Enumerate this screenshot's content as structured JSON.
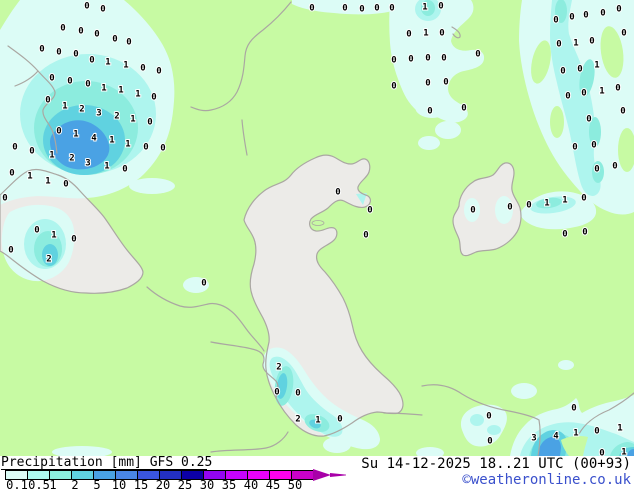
{
  "legend": {
    "title": "Precipitation [mm] GFS 0.25",
    "parameter": "Precipitation",
    "unit": "mm",
    "model": "GFS 0.25",
    "scale": [
      {
        "label": "0.1",
        "color": "#dcfcf6"
      },
      {
        "label": "0.5",
        "color": "#aefaf0"
      },
      {
        "label": "1",
        "color": "#8cf0de"
      },
      {
        "label": "2",
        "color": "#60d2e0"
      },
      {
        "label": "5",
        "color": "#4aa2e4"
      },
      {
        "label": "10",
        "color": "#4a86e6"
      },
      {
        "label": "15",
        "color": "#3a55dd"
      },
      {
        "label": "20",
        "color": "#2330c2"
      },
      {
        "label": "25",
        "color": "#0c00a6"
      },
      {
        "label": "30",
        "color": "#9305f2"
      },
      {
        "label": "35",
        "color": "#c603fc"
      },
      {
        "label": "40",
        "color": "#ea02fa"
      },
      {
        "label": "45",
        "color": "#fe01ee"
      },
      {
        "label": "50",
        "color": "#c801c8"
      }
    ],
    "overflow_arrow_color": "#a800a8"
  },
  "status_bar": {
    "valid_time": "Su 14-12-2025 18..21 UTC (00+93)",
    "copyright": "©weatheronline.co.uk",
    "copyright_color": "#3a50cc"
  },
  "map": {
    "colors": {
      "land": "#c7faa3",
      "sea": "#ecebe8",
      "coast": "#aaa7a2",
      "precip_01": "#dcfcf6",
      "precip_05": "#aef5ee",
      "precip_1": "#8cecde",
      "precip_2": "#60d2e0",
      "precip_5": "#4aa2e4"
    },
    "precip_values": [
      [
        87,
        5,
        "0"
      ],
      [
        103,
        8,
        "0"
      ],
      [
        63,
        27,
        "0"
      ],
      [
        81,
        30,
        "0"
      ],
      [
        97,
        33,
        "0"
      ],
      [
        115,
        38,
        "0"
      ],
      [
        129,
        41,
        "0"
      ],
      [
        42,
        48,
        "0"
      ],
      [
        59,
        51,
        "0"
      ],
      [
        76,
        53,
        "0"
      ],
      [
        92,
        59,
        "0"
      ],
      [
        108,
        61,
        "1"
      ],
      [
        126,
        64,
        "1"
      ],
      [
        143,
        67,
        "0"
      ],
      [
        159,
        70,
        "0"
      ],
      [
        52,
        77,
        "0"
      ],
      [
        70,
        80,
        "0"
      ],
      [
        88,
        83,
        "0"
      ],
      [
        104,
        87,
        "1"
      ],
      [
        121,
        89,
        "1"
      ],
      [
        138,
        93,
        "1"
      ],
      [
        154,
        96,
        "0"
      ],
      [
        48,
        99,
        "0"
      ],
      [
        65,
        105,
        "1"
      ],
      [
        82,
        108,
        "2"
      ],
      [
        99,
        112,
        "3"
      ],
      [
        117,
        115,
        "2"
      ],
      [
        133,
        118,
        "1"
      ],
      [
        150,
        121,
        "0"
      ],
      [
        59,
        130,
        "0"
      ],
      [
        76,
        133,
        "1"
      ],
      [
        94,
        137,
        "4"
      ],
      [
        112,
        139,
        "1"
      ],
      [
        128,
        143,
        "1"
      ],
      [
        146,
        146,
        "0"
      ],
      [
        163,
        147,
        "0"
      ],
      [
        15,
        146,
        "0"
      ],
      [
        32,
        150,
        "0"
      ],
      [
        52,
        154,
        "1"
      ],
      [
        72,
        157,
        "2"
      ],
      [
        88,
        162,
        "3"
      ],
      [
        107,
        165,
        "1"
      ],
      [
        125,
        168,
        "0"
      ],
      [
        12,
        172,
        "0"
      ],
      [
        30,
        175,
        "1"
      ],
      [
        48,
        180,
        "1"
      ],
      [
        66,
        183,
        "0"
      ],
      [
        5,
        197,
        "0"
      ],
      [
        312,
        7,
        "0"
      ],
      [
        345,
        7,
        "0"
      ],
      [
        362,
        8,
        "0"
      ],
      [
        377,
        7,
        "0"
      ],
      [
        392,
        7,
        "0"
      ],
      [
        425,
        6,
        "1"
      ],
      [
        441,
        5,
        "0"
      ],
      [
        409,
        33,
        "0"
      ],
      [
        426,
        32,
        "1"
      ],
      [
        442,
        32,
        "0"
      ],
      [
        394,
        59,
        "0"
      ],
      [
        411,
        58,
        "0"
      ],
      [
        428,
        57,
        "0"
      ],
      [
        444,
        57,
        "0"
      ],
      [
        478,
        53,
        "0"
      ],
      [
        394,
        85,
        "0"
      ],
      [
        428,
        82,
        "0"
      ],
      [
        446,
        81,
        "0"
      ],
      [
        430,
        110,
        "0"
      ],
      [
        464,
        107,
        "0"
      ],
      [
        556,
        19,
        "0"
      ],
      [
        572,
        16,
        "0"
      ],
      [
        586,
        14,
        "0"
      ],
      [
        603,
        12,
        "0"
      ],
      [
        619,
        8,
        "0"
      ],
      [
        559,
        43,
        "0"
      ],
      [
        576,
        42,
        "1"
      ],
      [
        592,
        40,
        "0"
      ],
      [
        624,
        32,
        "0"
      ],
      [
        563,
        70,
        "0"
      ],
      [
        580,
        68,
        "0"
      ],
      [
        597,
        64,
        "1"
      ],
      [
        568,
        95,
        "0"
      ],
      [
        584,
        92,
        "0"
      ],
      [
        602,
        90,
        "1"
      ],
      [
        618,
        87,
        "0"
      ],
      [
        589,
        118,
        "0"
      ],
      [
        623,
        110,
        "0"
      ],
      [
        575,
        146,
        "0"
      ],
      [
        594,
        144,
        "0"
      ],
      [
        597,
        168,
        "0"
      ],
      [
        615,
        165,
        "0"
      ],
      [
        338,
        191,
        "0"
      ],
      [
        370,
        209,
        "0"
      ],
      [
        366,
        234,
        "0"
      ],
      [
        473,
        209,
        "0"
      ],
      [
        510,
        206,
        "0"
      ],
      [
        529,
        204,
        "0"
      ],
      [
        547,
        202,
        "1"
      ],
      [
        565,
        199,
        "1"
      ],
      [
        584,
        197,
        "0"
      ],
      [
        565,
        233,
        "0"
      ],
      [
        585,
        231,
        "0"
      ],
      [
        37,
        229,
        "0"
      ],
      [
        54,
        234,
        "1"
      ],
      [
        74,
        238,
        "0"
      ],
      [
        11,
        249,
        "0"
      ],
      [
        49,
        258,
        "2"
      ],
      [
        204,
        282,
        "0"
      ],
      [
        279,
        366,
        "2"
      ],
      [
        277,
        391,
        "0"
      ],
      [
        298,
        392,
        "0"
      ],
      [
        298,
        418,
        "2"
      ],
      [
        318,
        419,
        "1"
      ],
      [
        340,
        418,
        "0"
      ],
      [
        489,
        415,
        "0"
      ],
      [
        490,
        440,
        "0"
      ],
      [
        574,
        407,
        "0"
      ],
      [
        534,
        437,
        "3"
      ],
      [
        556,
        435,
        "4"
      ],
      [
        576,
        432,
        "1"
      ],
      [
        597,
        430,
        "0"
      ],
      [
        620,
        427,
        "1"
      ],
      [
        602,
        452,
        "0"
      ],
      [
        624,
        451,
        "1"
      ]
    ]
  }
}
